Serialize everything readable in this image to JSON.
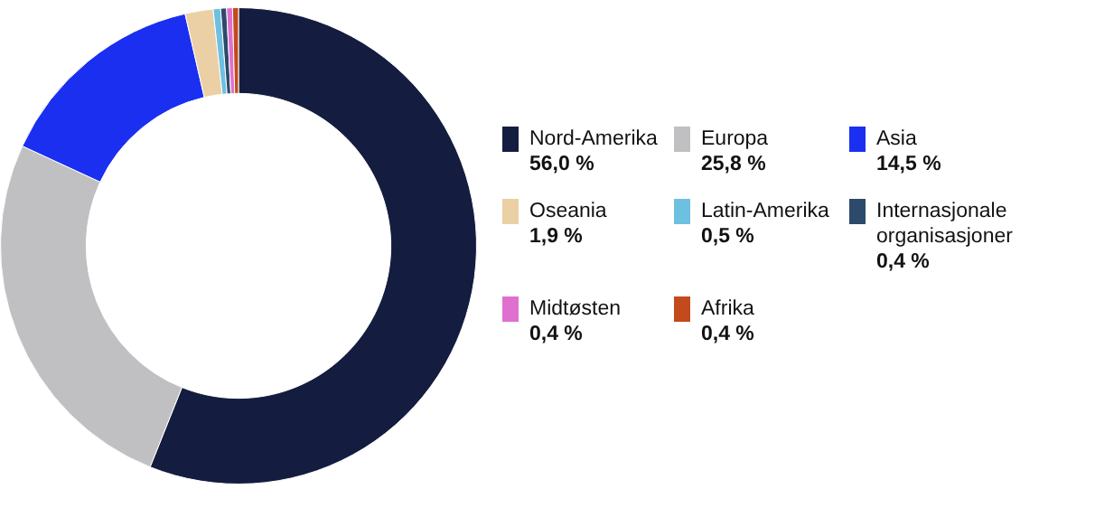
{
  "chart_data": {
    "type": "donut",
    "legend": "right",
    "categories": [
      "Nord-Amerika",
      "Europa",
      "Asia",
      "Oseania",
      "Latin-Amerika",
      "Internasjonale organisasjoner",
      "Midtøsten",
      "Afrika"
    ],
    "values": [
      56.0,
      25.8,
      14.5,
      1.9,
      0.5,
      0.4,
      0.4,
      0.4
    ],
    "value_labels": [
      "56,0 %",
      "25,8 %",
      "14,5 %",
      "1,9 %",
      "0,5 %",
      "0,4 %",
      "0,4 %",
      "0,4 %"
    ],
    "colors": [
      "#141d3f",
      "#c0c0c2",
      "#1a2ff0",
      "#ead0a4",
      "#6ec0e0",
      "#2d4a6a",
      "#e070d0",
      "#c24a1c"
    ]
  }
}
